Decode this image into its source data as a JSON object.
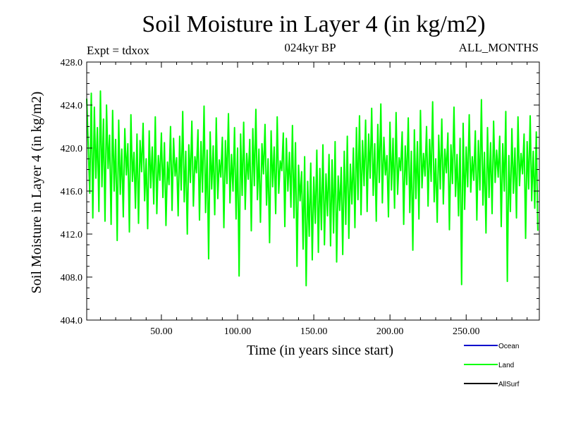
{
  "header": {
    "title": "Soil Moisture in Layer 4 (in kg/m2)",
    "expt": "Expt = tdxox",
    "subtitle": "024kyr BP",
    "months": "ALL_MONTHS"
  },
  "colors": {
    "Ocean": "#0000cc",
    "Land": "#00ff00",
    "AllSurf": "#000000"
  },
  "chart_data": {
    "type": "line",
    "title": "Soil Moisture in Layer 4 (in kg/m2)",
    "xlabel": "Time (in years since start)",
    "ylabel": "Soil Moisture in Layer 4 (in kg/m2)",
    "xlim": [
      1,
      298
    ],
    "ylim": [
      404.0,
      428.0
    ],
    "x_ticks": [
      "50.00",
      "100.00",
      "150.00",
      "200.00",
      "250.00"
    ],
    "x_tick_values": [
      50,
      100,
      150,
      200,
      250
    ],
    "y_ticks": [
      "404.0",
      "408.0",
      "412.0",
      "416.0",
      "420.0",
      "424.0",
      "428.0"
    ],
    "y_tick_values": [
      404,
      408,
      412,
      416,
      420,
      424,
      428
    ],
    "legend": [
      "Ocean",
      "Land",
      "AllSurf"
    ],
    "legend_position": "bottom-right",
    "series": [
      {
        "name": "Land",
        "x_start": 1,
        "x_step": 1,
        "values": [
          424.6,
          420.2,
          415.8,
          425.1,
          413.5,
          423.8,
          417.2,
          421.9,
          414.1,
          425.3,
          416.4,
          422.7,
          413.2,
          424.0,
          418.1,
          421.2,
          412.9,
          423.5,
          416.0,
          420.8,
          411.4,
          422.6,
          415.7,
          419.9,
          413.6,
          421.8,
          417.5,
          420.4,
          412.2,
          423.1,
          416.9,
          419.6,
          414.4,
          421.3,
          413.0,
          420.7,
          417.8,
          422.3,
          415.1,
          419.0,
          412.5,
          421.6,
          416.3,
          420.1,
          414.8,
          422.9,
          413.9,
          419.3,
          417.0,
          421.4,
          415.4,
          420.5,
          412.8,
          418.7,
          416.6,
          422.0,
          414.2,
          420.9,
          417.4,
          419.1,
          413.7,
          421.1,
          416.1,
          423.4,
          415.0,
          419.7,
          412.0,
          420.3,
          416.8,
          422.5,
          414.6,
          419.2,
          417.7,
          421.7,
          413.3,
          420.6,
          415.9,
          423.9,
          414.0,
          419.8,
          409.7,
          421.5,
          416.2,
          420.2,
          413.8,
          422.8,
          415.3,
          418.9,
          417.3,
          421.0,
          412.6,
          420.7,
          416.7,
          423.2,
          414.9,
          419.4,
          416.0,
          421.9,
          413.4,
          420.0,
          408.1,
          421.3,
          415.6,
          422.4,
          414.3,
          419.5,
          417.1,
          420.8,
          412.3,
          421.8,
          416.5,
          423.6,
          415.2,
          419.9,
          413.1,
          420.4,
          417.6,
          422.2,
          414.7,
          419.0,
          411.2,
          421.6,
          416.4,
          420.1,
          413.9,
          422.9,
          415.8,
          418.8,
          417.9,
          421.4,
          412.7,
          420.9,
          416.0,
          419.6,
          414.5,
          422.1,
          413.5,
          420.5,
          409.0,
          418.4,
          415.1,
          417.8,
          410.6,
          419.2,
          407.2,
          416.9,
          411.8,
          418.6,
          409.6,
          417.3,
          413.0,
          419.8,
          410.3,
          418.1,
          412.4,
          420.3,
          411.0,
          417.6,
          413.7,
          419.4,
          410.9,
          418.9,
          412.1,
          420.6,
          409.4,
          417.4,
          414.2,
          418.2,
          410.1,
          419.7,
          412.9,
          421.1,
          411.6,
          418.5,
          414.8,
          420.0,
          412.6,
          421.9,
          415.2,
          423.0,
          413.8,
          420.7,
          416.5,
          422.6,
          414.1,
          421.3,
          417.2,
          423.7,
          415.6,
          420.4,
          413.2,
          422.2,
          416.8,
          424.1,
          414.9,
          421.0,
          417.5,
          419.3,
          413.6,
          422.4,
          416.1,
          420.9,
          414.4,
          423.3,
          415.7,
          419.1,
          417.9,
          421.5,
          412.9,
          420.2,
          416.6,
          422.8,
          414.0,
          419.7,
          410.5,
          421.7,
          415.3,
          420.6,
          413.4,
          423.5,
          416.3,
          419.5,
          417.4,
          422.0,
          414.6,
          420.8,
          416.9,
          424.3,
          415.0,
          419.0,
          413.1,
          421.2,
          416.2,
          422.7,
          414.8,
          419.9,
          417.7,
          421.4,
          412.4,
          420.3,
          416.7,
          423.8,
          415.5,
          419.4,
          413.7,
          420.9,
          407.3,
          422.3,
          414.3,
          420.1,
          416.4,
          423.1,
          415.9,
          419.2,
          417.0,
          421.6,
          413.3,
          420.7,
          416.1,
          424.5,
          414.7,
          419.6,
          412.1,
          421.9,
          415.4,
          420.5,
          413.9,
          422.5,
          416.8,
          419.8,
          417.3,
          421.1,
          412.7,
          420.4,
          416.0,
          423.4,
          407.6,
          419.3,
          414.1,
          421.8,
          415.8,
          420.0,
          413.5,
          422.9,
          416.5,
          419.5,
          417.6,
          421.3,
          411.6,
          420.6,
          416.2,
          423.0,
          415.1,
          419.7,
          414.4,
          421.5,
          412.3
        ]
      }
    ]
  }
}
